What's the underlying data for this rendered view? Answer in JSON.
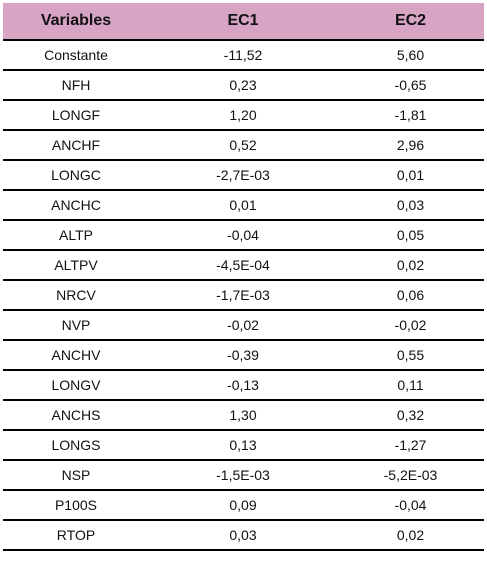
{
  "table": {
    "headers": [
      "Variables",
      "EC1",
      "EC2"
    ],
    "rows": [
      [
        "Constante",
        "-11,52",
        "5,60"
      ],
      [
        "NFH",
        "0,23",
        "-0,65"
      ],
      [
        "LONGF",
        "1,20",
        "-1,81"
      ],
      [
        "ANCHF",
        "0,52",
        "2,96"
      ],
      [
        "LONGC",
        "-2,7E-03",
        "0,01"
      ],
      [
        "ANCHC",
        "0,01",
        "0,03"
      ],
      [
        "ALTP",
        "-0,04",
        "0,05"
      ],
      [
        "ALTPV",
        "-4,5E-04",
        "0,02"
      ],
      [
        "NRCV",
        "-1,7E-03",
        "0,06"
      ],
      [
        "NVP",
        "-0,02",
        "-0,02"
      ],
      [
        "ANCHV",
        "-0,39",
        "0,55"
      ],
      [
        "LONGV",
        "-0,13",
        "0,11"
      ],
      [
        "ANCHS",
        "1,30",
        "0,32"
      ],
      [
        "LONGS",
        "0,13",
        "-1,27"
      ],
      [
        "NSP",
        "-1,5E-03",
        "-5,2E-03"
      ],
      [
        "P100S",
        "0,09",
        "-0,04"
      ],
      [
        "RTOP",
        "0,03",
        "0,02"
      ]
    ]
  }
}
